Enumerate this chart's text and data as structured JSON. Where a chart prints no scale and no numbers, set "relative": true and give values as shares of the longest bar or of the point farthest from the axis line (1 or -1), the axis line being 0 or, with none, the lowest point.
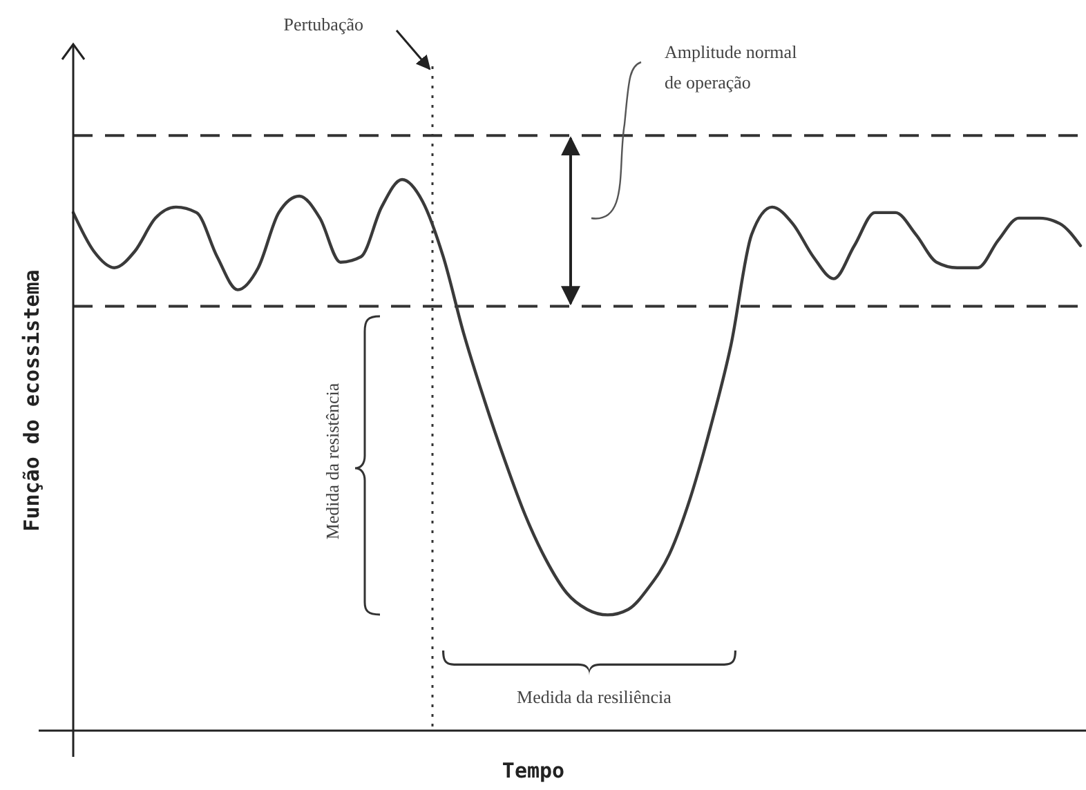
{
  "chart_data": {
    "type": "line",
    "relative": true,
    "xlabel": "Tempo",
    "ylabel": "Função do ecossistema",
    "categories": [
      null,
      null,
      null,
      null,
      null,
      null,
      null,
      null,
      null,
      null,
      null,
      null,
      null,
      null,
      null,
      null,
      null,
      null,
      null,
      null,
      null,
      null,
      null,
      null,
      null,
      null,
      null,
      null,
      null,
      null,
      null,
      null,
      null,
      null,
      null,
      null,
      null,
      null,
      null,
      null,
      null,
      null,
      null,
      null,
      null,
      null,
      null,
      null,
      null,
      null
    ],
    "series": [
      {
        "color": "#3a3a3a",
        "values": [
          0.94,
          0.87,
          0.84,
          0.87,
          0.93,
          0.95,
          0.94,
          0.86,
          0.8,
          0.84,
          0.94,
          0.97,
          0.93,
          0.85,
          0.86,
          0.95,
          1,
          0.96,
          0.86,
          0.72,
          0.6,
          0.49,
          0.39,
          0.31,
          0.25,
          0.22,
          0.21,
          0.22,
          0.26,
          0.32,
          0.42,
          0.55,
          0.7,
          0.9,
          0.95,
          0.92,
          0.86,
          0.82,
          0.88,
          0.94,
          0.94,
          0.9,
          0.85,
          0.84,
          0.84,
          0.89,
          0.93,
          0.93,
          0.92,
          0.88
        ]
      }
    ],
    "ref_lines": [
      {
        "axis": "y",
        "value": 1.08,
        "line_style": "dashed",
        "color": "#333333"
      },
      {
        "axis": "y",
        "value": 0.77,
        "line_style": "dashed",
        "color": "#333333"
      }
    ],
    "annotations": [
      "Amplitude normal de operação",
      "Medida da resistência",
      "Medida da resiliência",
      "Pertubação"
    ],
    "line_style": "solid",
    "marker": "none"
  }
}
